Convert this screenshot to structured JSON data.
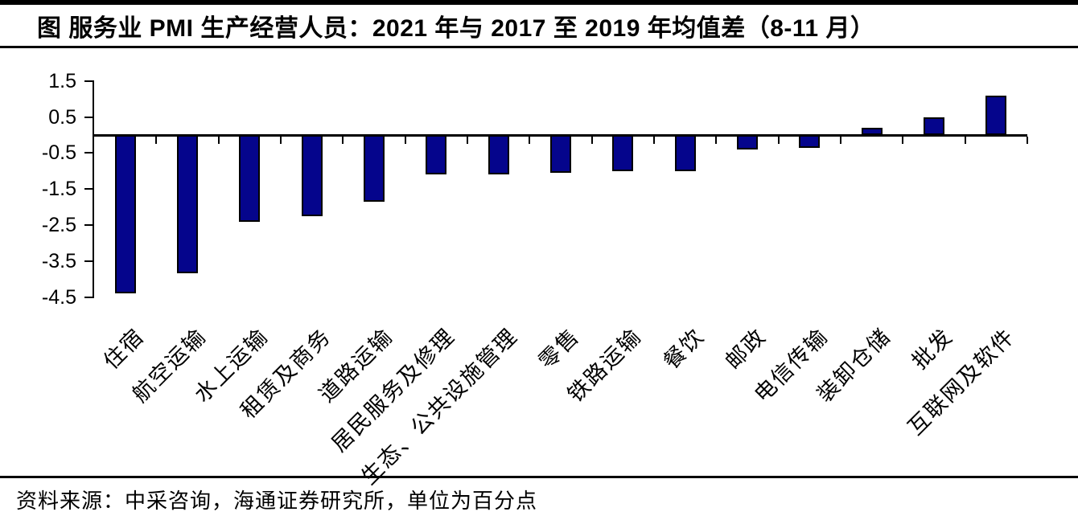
{
  "title": "图 服务业 PMI 生产经营人员：2021 年与 2017 至 2019 年均值差（8-11 月）",
  "source_note": "资料来源：中采咨询，海通证券研究所，单位为百分点",
  "colors": {
    "bar_fill": "#05058c",
    "bar_border": "#000000",
    "axis": "#000000",
    "text": "#000000"
  },
  "chart_data": {
    "type": "bar",
    "title": "服务业PMI生产经营人员：2021年与2017至2019年均值差（8-11月）",
    "categories": [
      "住宿",
      "航空运输",
      "水上运输",
      "租赁及商务",
      "道路运输",
      "居民服务及修理",
      "生态、公共设施管理",
      "零售",
      "铁路运输",
      "餐饮",
      "邮政",
      "电信传输",
      "装卸仓储",
      "批发",
      "互联网及软件"
    ],
    "values": [
      -4.4,
      -3.85,
      -2.4,
      -2.25,
      -1.85,
      -1.1,
      -1.1,
      -1.05,
      -1.0,
      -1.0,
      -0.4,
      -0.35,
      0.2,
      0.5,
      1.1
    ],
    "y_ticks": [
      1.5,
      0.5,
      -0.5,
      -1.5,
      -2.5,
      -3.5,
      -4.5
    ],
    "ylim": [
      -4.5,
      1.5
    ],
    "xlabel": "",
    "ylabel": "",
    "unit": "百分点",
    "grid": false,
    "legend": null,
    "bar_color": "#05058c",
    "x_label_rotation_deg": 45
  }
}
